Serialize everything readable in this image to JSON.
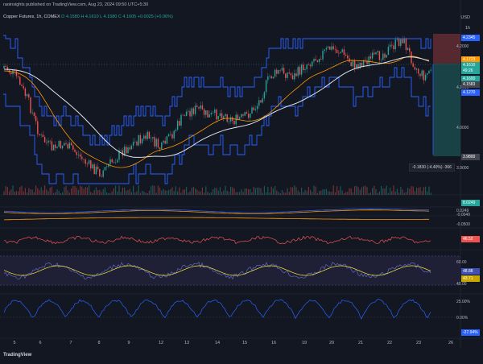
{
  "header": {
    "publisher": "raoinsights published on TradingView.com, Aug 23, 2024 09:50 UTC+5:30"
  },
  "symbol": {
    "name": "Copper Futures, 1h, COMEX",
    "ohlc": "O 4.1580 H 4.1610 L 4.1580 C 4.1605 +0.0025 (+0.06%)"
  },
  "axis": {
    "currency": "USD",
    "one_h": "1h",
    "prices": [
      "4.2000",
      "4.1000",
      "4.0000",
      "3.9000"
    ],
    "tags": [
      {
        "text": "4.2345",
        "color": "#2962ff"
      },
      {
        "text": "4.1723",
        "color": "#ff9800"
      },
      {
        "text": "4.1610",
        "color": "#26a69a"
      },
      {
        "text": "49:26",
        "color": "#26a69a"
      },
      {
        "text": "4.1600",
        "color": "#26a69a"
      },
      {
        "text": "4.1583",
        "color": "#434651"
      },
      {
        "text": "4.1270",
        "color": "#2962ff"
      },
      {
        "text": "3.9800",
        "color": "#434651"
      }
    ],
    "vol_tag": "8.0249",
    "macd": [
      "0.0249",
      "-0.0049",
      "-0.0500"
    ],
    "rsi": "46.52",
    "stoch_levels": [
      "60.00",
      "40.00"
    ],
    "stoch_k": "48.88",
    "stoch_d": "43.71",
    "osc_levels": [
      "25.00%",
      "0.00%"
    ],
    "osc_val": "-27.94%"
  },
  "position_tooltip": "-0.1830 (-4.40%) -366",
  "x_labels": [
    "5",
    "6",
    "7",
    "8",
    "9",
    "12",
    "13",
    "14",
    "15",
    "16",
    "19",
    "20",
    "21",
    "22",
    "23",
    "26"
  ],
  "colors": {
    "bg": "#131722",
    "up": "#26a69a",
    "down": "#ef5350",
    "band": "#2962ff",
    "ma": "#ff9800",
    "ema": "#e0e3eb"
  },
  "footer": {
    "brand": "TradingView"
  }
}
